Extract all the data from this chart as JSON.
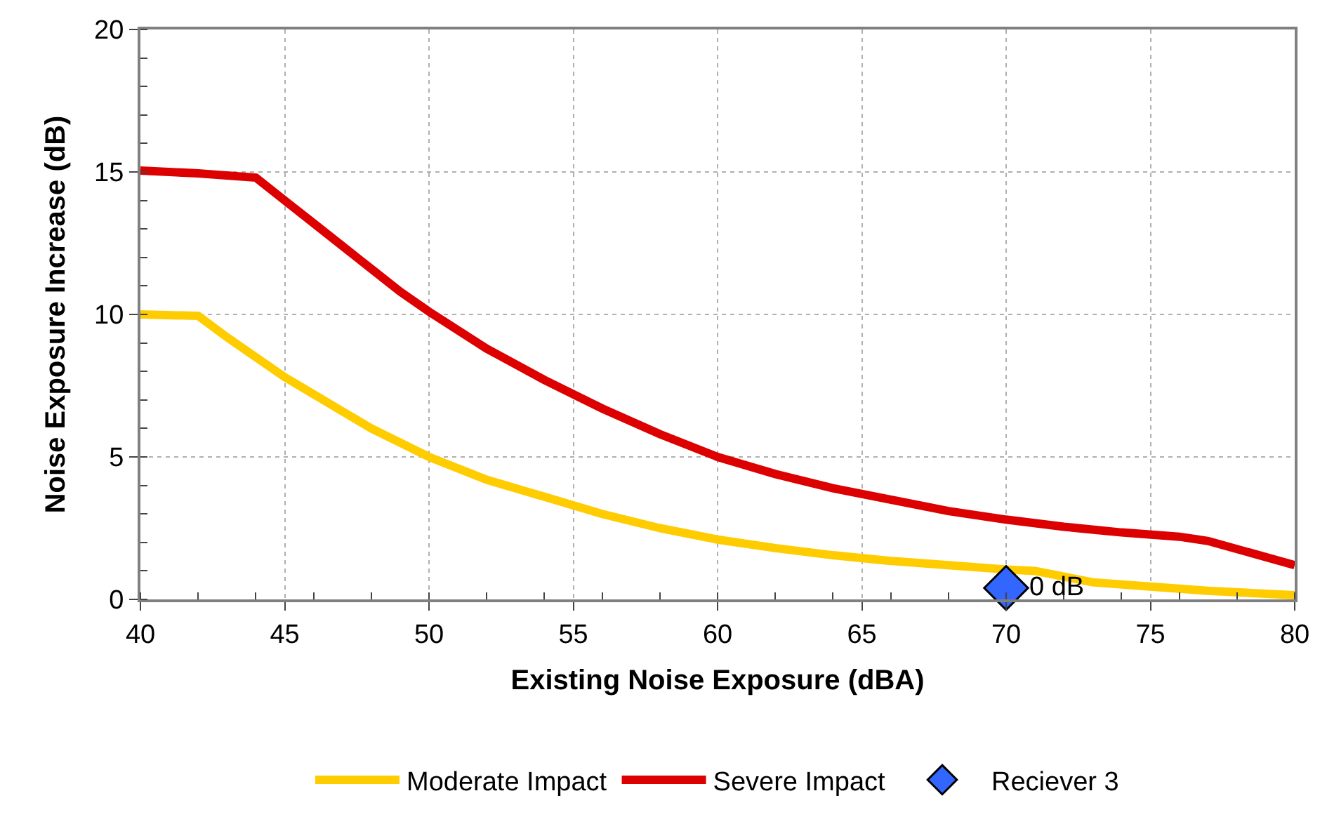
{
  "chart_data": {
    "type": "line",
    "xlabel": "Existing Noise Exposure (dBA)",
    "ylabel": "Noise Exposure Increase (dB)",
    "xlim": [
      40,
      80
    ],
    "xticks": [
      40,
      45,
      50,
      55,
      60,
      65,
      70,
      75,
      80
    ],
    "ylim": [
      0,
      20
    ],
    "yticks": [
      0,
      5,
      10,
      15,
      20
    ],
    "grid": true,
    "legend": "bottom",
    "line_style": "solid",
    "series": [
      {
        "name": "Moderate Impact",
        "color": "#ffcc00",
        "marker": "none",
        "x": [
          40,
          42,
          43,
          44,
          45,
          46,
          47,
          48,
          49,
          50,
          52,
          54,
          56,
          58,
          60,
          62,
          64,
          66,
          68,
          70,
          71,
          73,
          75,
          77,
          80
        ],
        "values": [
          10.0,
          9.95,
          9.2,
          8.5,
          7.8,
          7.2,
          6.6,
          6.0,
          5.5,
          5.0,
          4.2,
          3.6,
          3.0,
          2.5,
          2.1,
          1.8,
          1.55,
          1.35,
          1.2,
          1.05,
          1.0,
          0.6,
          0.45,
          0.3,
          0.15
        ]
      },
      {
        "name": "Severe Impact",
        "color": "#dd0000",
        "marker": "none",
        "x": [
          40,
          42,
          44,
          45,
          46,
          47,
          48,
          49,
          50,
          52,
          54,
          56,
          58,
          60,
          62,
          64,
          66,
          68,
          70,
          72,
          74,
          76,
          77,
          80
        ],
        "values": [
          15.05,
          14.95,
          14.8,
          14.0,
          13.2,
          12.4,
          11.6,
          10.8,
          10.1,
          8.8,
          7.7,
          6.7,
          5.8,
          5.0,
          4.4,
          3.9,
          3.5,
          3.1,
          2.8,
          2.55,
          2.35,
          2.2,
          2.05,
          1.2
        ]
      },
      {
        "name": "Reciever 3",
        "type": "scatter",
        "color": "#3366ff",
        "marker": "diamond",
        "x": [
          70
        ],
        "values": [
          0.4
        ]
      }
    ],
    "annotations": [
      {
        "text": "0 dB",
        "x": 70,
        "y": 0.4
      }
    ]
  }
}
